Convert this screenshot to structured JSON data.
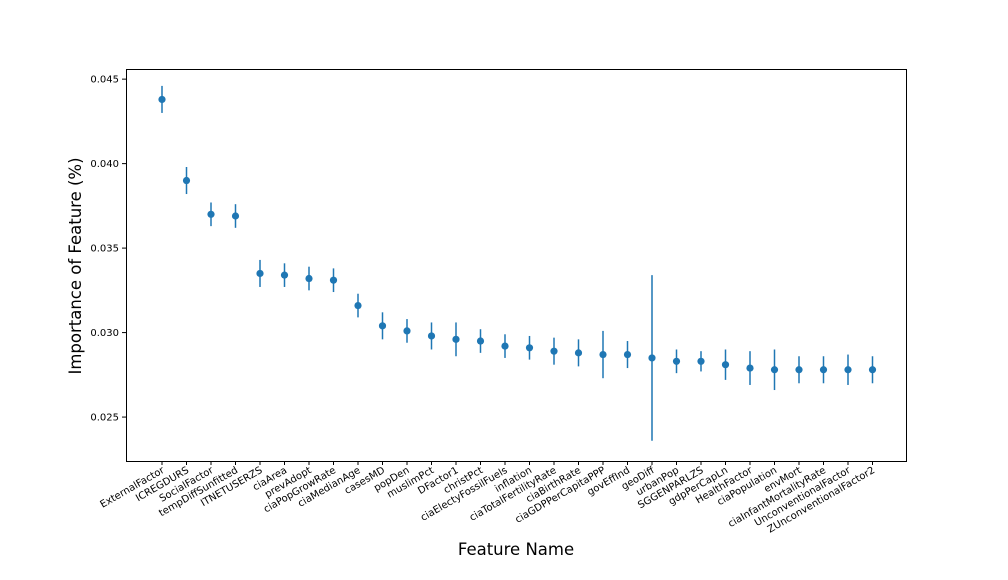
{
  "chart_data": {
    "type": "scatter",
    "xlabel": "Feature Name",
    "ylabel": "Importance of Feature (%)",
    "ylim": [
      0.0224,
      0.0456
    ],
    "y_ticks": [
      "0.025",
      "0.030",
      "0.035",
      "0.040",
      "0.045"
    ],
    "y_tick_values": [
      0.025,
      0.03,
      0.035,
      0.04,
      0.045
    ],
    "grid": false,
    "legend": "none",
    "color": "#1f77b4",
    "categories": [
      "ExternalFactor",
      "ICREGDURS",
      "SocialFactor",
      "tempDiffSunfitted",
      "ITNETUSERZS",
      "ciaArea",
      "prevAdopt",
      "ciaPopGrowRate",
      "ciaMedianAge",
      "casesMD",
      "popDen",
      "muslimPct",
      "DFactor1",
      "christPct",
      "ciaElectyFossilFuels",
      "inflation",
      "ciaTotalFertilityRate",
      "ciaBirthRate",
      "ciaGDPPerCapitaPPP",
      "govEffInd",
      "geoDiff",
      "urbanPop",
      "SGGENPARLZS",
      "gdpPerCapLn",
      "HealthFactor",
      "ciaPopulation",
      "envMort",
      "ciaInfantMortalityRate",
      "UnconventionalFactor",
      "ZUnconventionalFactor2"
    ],
    "values": [
      0.0438,
      0.039,
      0.037,
      0.0369,
      0.0335,
      0.0334,
      0.0332,
      0.0331,
      0.0316,
      0.0304,
      0.0301,
      0.0298,
      0.0296,
      0.0295,
      0.0292,
      0.0291,
      0.0289,
      0.0288,
      0.0287,
      0.0287,
      0.0285,
      0.0283,
      0.0283,
      0.0281,
      0.0279,
      0.0278,
      0.0278,
      0.0278,
      0.0278,
      0.0278
    ],
    "errors": [
      0.0008,
      0.0008,
      0.0007,
      0.0007,
      0.0008,
      0.0007,
      0.0007,
      0.0007,
      0.0007,
      0.0008,
      0.0007,
      0.0008,
      0.001,
      0.0007,
      0.0007,
      0.0007,
      0.0008,
      0.0008,
      0.0014,
      0.0008,
      0.0049,
      0.0007,
      0.0006,
      0.0009,
      0.001,
      0.0012,
      0.0008,
      0.0008,
      0.0009,
      0.0008
    ]
  }
}
